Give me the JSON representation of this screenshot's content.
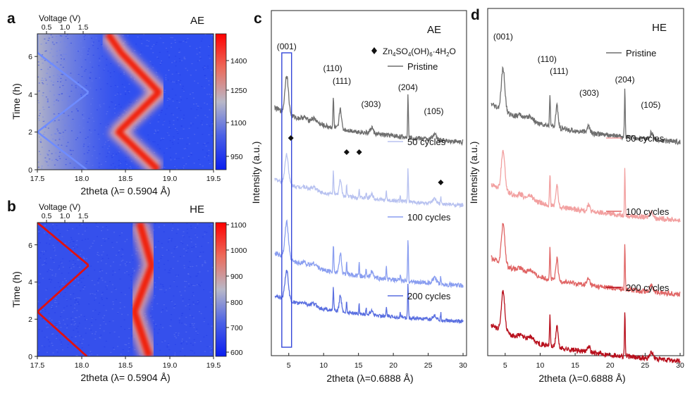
{
  "figure": {
    "panels": {
      "a": {
        "label": "a",
        "condition": "AE"
      },
      "b": {
        "label": "b",
        "condition": "HE"
      },
      "c": {
        "label": "c",
        "condition": "AE"
      },
      "d": {
        "label": "d",
        "condition": "HE"
      }
    },
    "chart_data": [
      {
        "panel": "a",
        "type": "heatmap",
        "title": "AE",
        "xlabel": "2theta  (λ= 0.5904 Å)",
        "ylabel": "Time (h)",
        "top_xlabel": "Voltage (V)",
        "xlim": [
          17.5,
          19.5
        ],
        "ylim": [
          0,
          7.2
        ],
        "x_ticks": [
          "17.5",
          "18.0",
          "18.5",
          "19.0",
          "19.5"
        ],
        "y_ticks": [
          "0",
          "2",
          "4",
          "6"
        ],
        "top_ticks": [
          "0.5",
          "1.0",
          "1.5"
        ],
        "colorbar_ticks": [
          "950",
          "1100",
          "1250",
          "1400"
        ],
        "colorbar_range": [
          900,
          1500
        ],
        "peak_position": {
          "time_h": [
            0,
            2,
            4.1,
            6.2,
            7.2
          ],
          "two_theta": [
            18.87,
            18.42,
            18.88,
            18.45,
            18.3
          ]
        },
        "voltage_profile": {
          "time_h": [
            0,
            2,
            4.1,
            6.2,
            7.2
          ],
          "voltage_v": [
            1.8,
            0.5,
            1.85,
            0.5,
            0.5
          ],
          "color": "#6f8cff"
        }
      },
      {
        "panel": "b",
        "type": "heatmap",
        "title": "HE",
        "xlabel": "2theta  (λ= 0.5904 Å)",
        "ylabel": "Time (h)",
        "top_xlabel": "Voltage (V)",
        "xlim": [
          17.5,
          19.5
        ],
        "ylim": [
          0,
          7.2
        ],
        "x_ticks": [
          "17.5",
          "18.0",
          "18.5",
          "19.0",
          "19.5"
        ],
        "y_ticks": [
          "0",
          "2",
          "4",
          "6"
        ],
        "top_ticks": [
          "0.5",
          "1.0",
          "1.5"
        ],
        "colorbar_ticks": [
          "600",
          "700",
          "800",
          "900",
          "1000",
          "1100"
        ],
        "colorbar_range": [
          590,
          1110
        ],
        "peak_position": {
          "time_h": [
            0,
            2.4,
            4.9,
            7.2
          ],
          "two_theta": [
            18.77,
            18.6,
            18.8,
            18.66
          ]
        },
        "voltage_profile": {
          "time_h": [
            0,
            2.4,
            4.9,
            7.2
          ],
          "voltage_v": [
            1.8,
            0.5,
            1.85,
            0.5
          ],
          "color": "#e01010"
        }
      },
      {
        "panel": "c",
        "type": "line",
        "title": "AE",
        "xlabel": "2theta  (λ=0.6888 Å)",
        "ylabel": "Intensity (a.u.)",
        "xlim": [
          2.5,
          30.5
        ],
        "x_ticks": [
          "5",
          "10",
          "15",
          "20",
          "25",
          "30"
        ],
        "series": [
          {
            "name": "Pristine",
            "color": "#6e6e6e"
          },
          {
            "name": "50 cycles",
            "color": "#b8c2f0"
          },
          {
            "name": "100 cycles",
            "color": "#8a9ef0"
          },
          {
            "name": "200 cycles",
            "color": "#5a6fe0"
          }
        ],
        "peak_labels": [
          {
            "text": "(001)",
            "x": 4.7
          },
          {
            "text": "(110)",
            "x": 11.3
          },
          {
            "text": "(111)",
            "x": 12.3
          },
          {
            "text": "(303)",
            "x": 16.8
          },
          {
            "text": "(204)",
            "x": 22.1
          },
          {
            "text": "(105)",
            "x": 25.8
          }
        ],
        "impurity_marks_x": [
          5.3,
          13.3,
          15.1,
          26.8
        ],
        "impurity_legend": "Zn4SO4(OH)6·4H2O",
        "highlight_range": [
          4.0,
          5.4
        ]
      },
      {
        "panel": "d",
        "type": "line",
        "title": "HE",
        "xlabel": "2theta  (λ=0.6888 Å)",
        "ylabel": "Intensity (a.u.)",
        "xlim": [
          2.5,
          30.5
        ],
        "x_ticks": [
          "5",
          "10",
          "15",
          "20",
          "25",
          "30"
        ],
        "series": [
          {
            "name": "Pristine",
            "color": "#6e6e6e"
          },
          {
            "name": "50 cycles",
            "color": "#f2a0a0"
          },
          {
            "name": "100 cycles",
            "color": "#e06565"
          },
          {
            "name": "200 cycles",
            "color": "#b80f1c"
          }
        ],
        "peak_labels": [
          {
            "text": "(001)",
            "x": 4.7
          },
          {
            "text": "(110)",
            "x": 11.3
          },
          {
            "text": "(111)",
            "x": 12.3
          },
          {
            "text": "(303)",
            "x": 17.0
          },
          {
            "text": "(204)",
            "x": 22.1
          },
          {
            "text": "(105)",
            "x": 25.8
          }
        ]
      }
    ]
  }
}
